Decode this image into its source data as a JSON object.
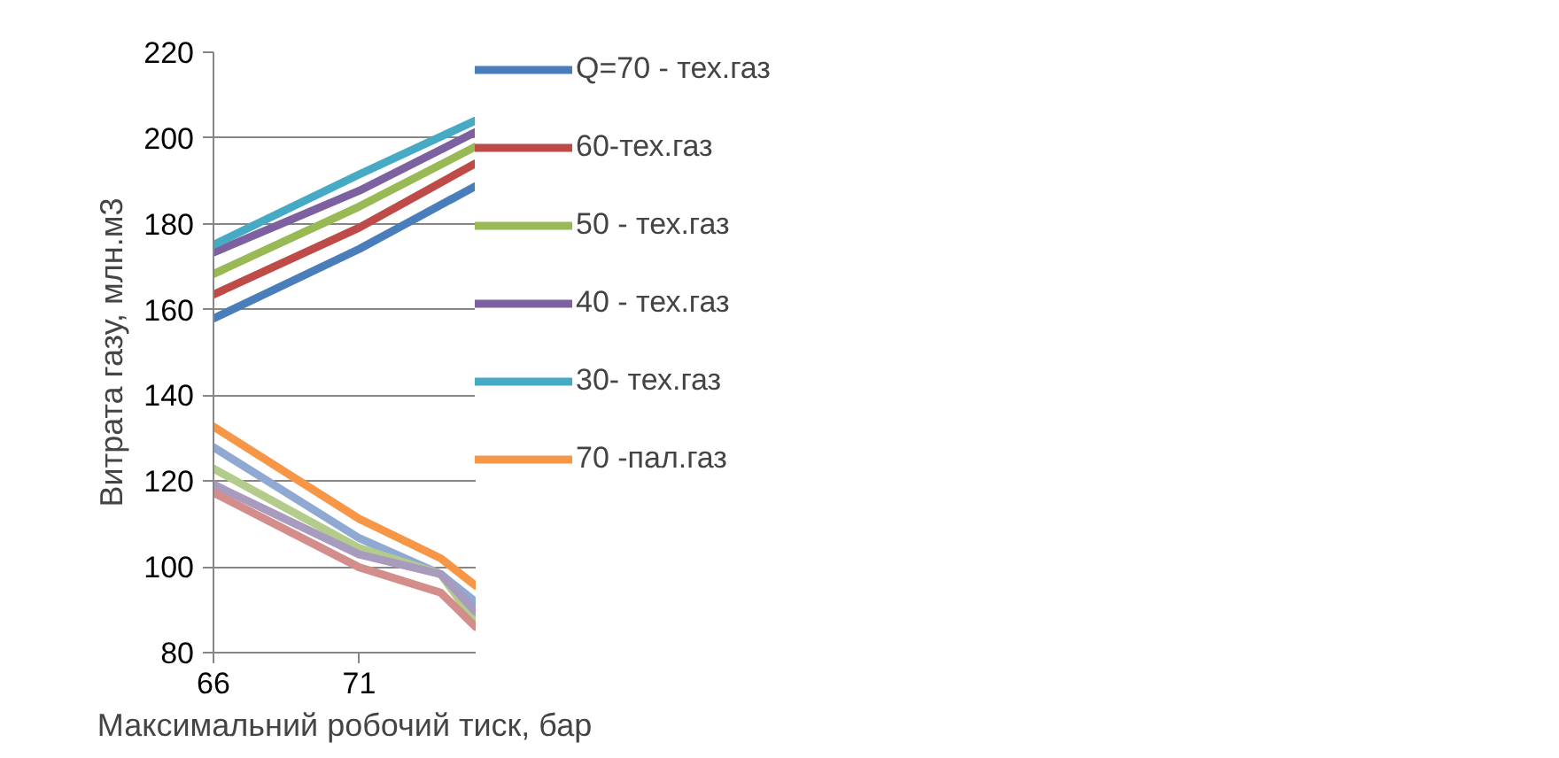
{
  "chart_data": {
    "type": "line",
    "xlabel": "Максимальний робочий тиск, бар",
    "ylabel": "Витрата газу, млн.м3",
    "xlim": [
      66,
      75
    ],
    "xticks": [
      66,
      71
    ],
    "ylim": [
      80,
      220
    ],
    "yticks": [
      80,
      100,
      120,
      140,
      160,
      180,
      200,
      220
    ],
    "grid": "y",
    "legend": "right",
    "marker": "none",
    "line_style": "solid",
    "series": [
      {
        "name": "Q=70 - тех.газ",
        "color": "#4a7ebb",
        "x": [
          66,
          71,
          75
        ],
        "values": [
          157.9,
          174.1,
          188.8
        ]
      },
      {
        "name": "60-тех.газ",
        "color": "#be4b48",
        "x": [
          66,
          71,
          75
        ],
        "values": [
          163.5,
          179.1,
          194.1
        ]
      },
      {
        "name": "50 - тех.газ",
        "color": "#98b954",
        "x": [
          66,
          71,
          75
        ],
        "values": [
          168.3,
          184,
          198
        ]
      },
      {
        "name": "40 - тех.газ",
        "color": "#7d60a0",
        "x": [
          66,
          71,
          75
        ],
        "values": [
          173.3,
          187.7,
          201.4
        ]
      },
      {
        "name": "30- тех.газ",
        "color": "#46aac5",
        "x": [
          66,
          71,
          75
        ],
        "values": [
          175.1,
          191.5,
          204.1
        ]
      },
      {
        "name": "70 -пал.газ",
        "color": "#f79646",
        "x": [
          66,
          71,
          73.8,
          75
        ],
        "values": [
          132.7,
          111.2,
          102,
          95.6
        ]
      },
      {
        "color": "#8fa9d3",
        "x": [
          66,
          71,
          73.8,
          75
        ],
        "values": [
          127.9,
          106.7,
          98.3,
          91.8
        ]
      },
      {
        "color": "#b3cc8c",
        "x": [
          66,
          71,
          73.8,
          75
        ],
        "values": [
          122.9,
          104.4,
          98.3,
          87
        ]
      },
      {
        "color": "#a99bbd",
        "x": [
          66,
          71,
          73.8,
          75
        ],
        "values": [
          119.2,
          102.9,
          98.3,
          89.5
        ]
      },
      {
        "color": "#d38e8c",
        "x": [
          66,
          71,
          73.8,
          75
        ],
        "values": [
          117.3,
          99.9,
          94,
          86
        ]
      }
    ]
  }
}
